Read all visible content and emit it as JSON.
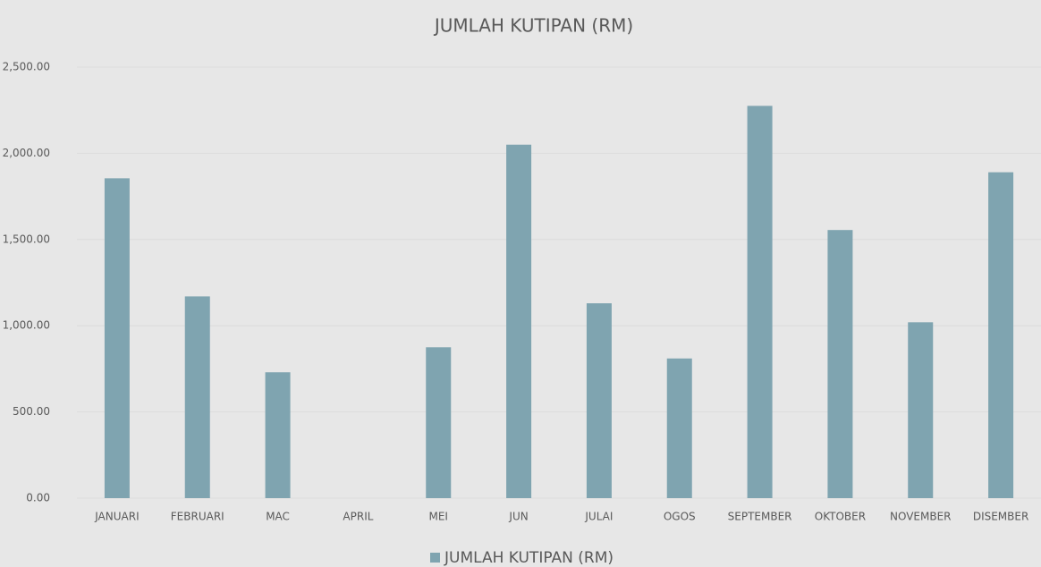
{
  "chart_data": {
    "type": "bar",
    "title": "JUMLAH KUTIPAN (RM)",
    "categories": [
      "JANUARI",
      "FEBRUARI",
      "MAC",
      "APRIL",
      "MEI",
      "JUN",
      "JULAI",
      "OGOS",
      "SEPTEMBER",
      "OKTOBER",
      "NOVEMBER",
      "DISEMBER"
    ],
    "series": [
      {
        "name": "JUMLAH KUTIPAN (RM)",
        "color": "#7fa4b0",
        "values": [
          1855,
          1170,
          730,
          0,
          875,
          2050,
          1130,
          810,
          2275,
          1555,
          1020,
          1890
        ]
      }
    ],
    "ylim": [
      0,
      2500
    ],
    "yticks": [
      {
        "value": 0,
        "label": "0.00"
      },
      {
        "value": 500,
        "label": "500.00"
      },
      {
        "value": 1000,
        "label": "1,000.00"
      },
      {
        "value": 1500,
        "label": "1,500.00"
      },
      {
        "value": 2000,
        "label": "2,000.00"
      },
      {
        "value": 2500,
        "label": "2,500.00"
      }
    ],
    "grid": true,
    "legend": "bottom"
  }
}
